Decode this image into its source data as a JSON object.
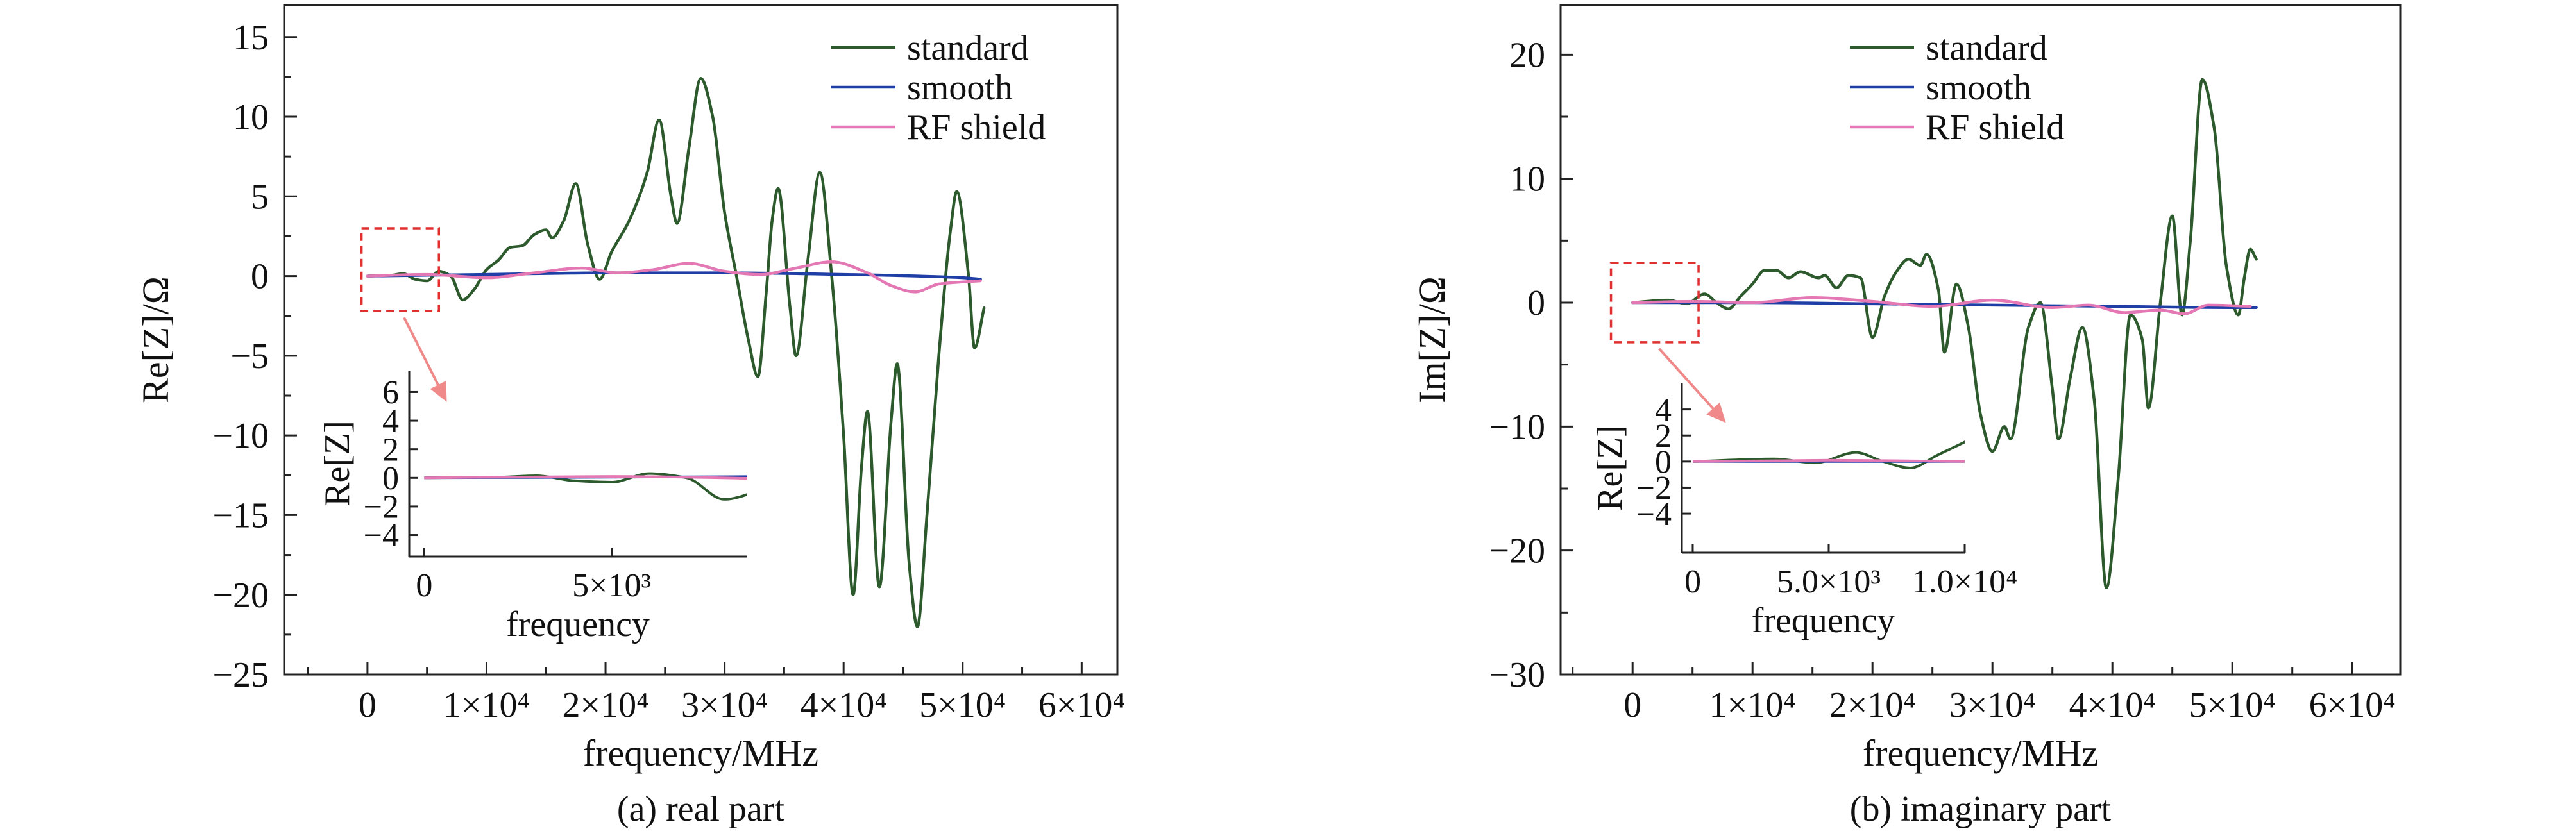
{
  "figures": [
    {
      "caption": "(a) real part",
      "chart_data": {
        "type": "line",
        "xlabel": "frequency/MHz",
        "ylabel": "Re[Z]/Ω",
        "xlim": [
          -7000,
          63000
        ],
        "ylim": [
          -25,
          17
        ],
        "xticks": [
          0,
          10000,
          20000,
          30000,
          40000,
          50000,
          60000
        ],
        "xtick_labels": [
          "0",
          "1×10⁴",
          "2×10⁴",
          "3×10⁴",
          "4×10⁴",
          "5×10⁴",
          "6×10⁴"
        ],
        "yticks": [
          -25,
          -20,
          -15,
          -10,
          -5,
          0,
          5,
          10,
          15
        ],
        "ytick_labels": [
          "−25",
          "−20",
          "−15",
          "−10",
          "−5",
          "0",
          "5",
          "10",
          "15"
        ],
        "grid": false,
        "legend_position": "top-right",
        "series": [
          {
            "name": "standard",
            "color": "#2d5a2d",
            "points": [
              [
                0,
                0
              ],
              [
                2000,
                0.05
              ],
              [
                3000,
                0.15
              ],
              [
                4000,
                -0.2
              ],
              [
                5000,
                -0.3
              ],
              [
                6000,
                0.3
              ],
              [
                7000,
                0
              ],
              [
                8000,
                -1.5
              ],
              [
                9000,
                -0.8
              ],
              [
                10000,
                0.4
              ],
              [
                11000,
                1
              ],
              [
                12000,
                1.8
              ],
              [
                13000,
                1.9
              ],
              [
                14000,
                2.6
              ],
              [
                15000,
                2.9
              ],
              [
                15500,
                2.4
              ],
              [
                16500,
                3.5
              ],
              [
                17500,
                5.8
              ],
              [
                18500,
                2
              ],
              [
                19500,
                -0.2
              ],
              [
                20500,
                1.5
              ],
              [
                22000,
                3.5
              ],
              [
                23500,
                6.5
              ],
              [
                24500,
                9.8
              ],
              [
                25500,
                5
              ],
              [
                26000,
                3.3
              ],
              [
                27000,
                8
              ],
              [
                28000,
                12.4
              ],
              [
                29000,
                10
              ],
              [
                30000,
                4
              ],
              [
                31000,
                0
              ],
              [
                32000,
                -4
              ],
              [
                32800,
                -6.3
              ],
              [
                33500,
                -1
              ],
              [
                34000,
                3.5
              ],
              [
                34500,
                5.5
              ],
              [
                35500,
                -2
              ],
              [
                36000,
                -5
              ],
              [
                37000,
                1
              ],
              [
                38000,
                6.5
              ],
              [
                39000,
                0
              ],
              [
                40000,
                -10
              ],
              [
                40800,
                -20
              ],
              [
                41500,
                -12
              ],
              [
                42000,
                -8.5
              ],
              [
                43000,
                -19.5
              ],
              [
                44000,
                -9
              ],
              [
                44500,
                -5.5
              ],
              [
                45500,
                -18
              ],
              [
                46200,
                -22
              ],
              [
                47000,
                -15
              ],
              [
                48000,
                -5
              ],
              [
                49000,
                3
              ],
              [
                49500,
                5.3
              ],
              [
                50500,
                0
              ],
              [
                51000,
                -4.5
              ],
              [
                51800,
                -2
              ]
            ]
          },
          {
            "name": "smooth",
            "color": "#1f3fa6",
            "points": [
              [
                0,
                0
              ],
              [
                10000,
                0.1
              ],
              [
                20000,
                0.2
              ],
              [
                30000,
                0.2
              ],
              [
                40000,
                0.1
              ],
              [
                50000,
                -0.1
              ],
              [
                51500,
                -0.2
              ]
            ]
          },
          {
            "name": "RF shield",
            "color": "#e478b4",
            "points": [
              [
                0,
                0
              ],
              [
                5000,
                0.1
              ],
              [
                10000,
                -0.1
              ],
              [
                14000,
                0.2
              ],
              [
                18000,
                0.5
              ],
              [
                21000,
                0.2
              ],
              [
                24000,
                0.4
              ],
              [
                27000,
                0.8
              ],
              [
                30000,
                0.3
              ],
              [
                33000,
                0.1
              ],
              [
                36000,
                0.5
              ],
              [
                39000,
                0.9
              ],
              [
                42000,
                0.2
              ],
              [
                44000,
                -0.6
              ],
              [
                46000,
                -1
              ],
              [
                48000,
                -0.5
              ],
              [
                51500,
                -0.3
              ]
            ]
          }
        ],
        "inset": {
          "ylabel": "Re[Z]",
          "xlabel": "frequency",
          "xlim": [
            -400,
            8600
          ],
          "ylim": [
            -5.5,
            7.5
          ],
          "xticks": [
            0,
            5000
          ],
          "xtick_labels": [
            "0",
            "5×10³"
          ],
          "yticks": [
            -4,
            -2,
            0,
            2,
            4,
            6
          ],
          "ytick_labels": [
            "−4",
            "−2",
            "0",
            "2",
            "4",
            "6"
          ],
          "zoom_range": {
            "x": [
              -500,
              6000
            ],
            "y": [
              -2.2,
              3
            ]
          }
        }
      }
    },
    {
      "caption": "(b) imaginary part",
      "chart_data": {
        "type": "line",
        "xlabel": "frequency/MHz",
        "ylabel": "Im[Z]/Ω",
        "xlim": [
          -6000,
          64000
        ],
        "ylim": [
          -30,
          24
        ],
        "xticks": [
          0,
          10000,
          20000,
          30000,
          40000,
          50000,
          60000
        ],
        "xtick_labels": [
          "0",
          "1×10⁴",
          "2×10⁴",
          "3×10⁴",
          "4×10⁴",
          "5×10⁴",
          "6×10⁴"
        ],
        "yticks": [
          -30,
          -20,
          -10,
          0,
          10,
          20
        ],
        "ytick_labels": [
          "−30",
          "−20",
          "−10",
          "0",
          "10",
          "20"
        ],
        "grid": false,
        "legend_position": "top-center",
        "series": [
          {
            "name": "standard",
            "color": "#2d5a2d",
            "points": [
              [
                0,
                0
              ],
              [
                3000,
                0.2
              ],
              [
                4500,
                -0.1
              ],
              [
                6000,
                0.7
              ],
              [
                7000,
                0
              ],
              [
                8000,
                -0.5
              ],
              [
                9000,
                0.5
              ],
              [
                10000,
                1.5
              ],
              [
                11000,
                2.6
              ],
              [
                12000,
                2.6
              ],
              [
                13000,
                2
              ],
              [
                14000,
                2.5
              ],
              [
                15500,
                2
              ],
              [
                16000,
                2.2
              ],
              [
                17000,
                1.2
              ],
              [
                18000,
                2.2
              ],
              [
                19000,
                2
              ],
              [
                20000,
                -2.8
              ],
              [
                21000,
                0.5
              ],
              [
                22000,
                2.5
              ],
              [
                23000,
                3.5
              ],
              [
                24000,
                3
              ],
              [
                24500,
                3.9
              ],
              [
                25500,
                1
              ],
              [
                26000,
                -4
              ],
              [
                27000,
                1.5
              ],
              [
                28000,
                -2
              ],
              [
                29000,
                -9
              ],
              [
                30000,
                -12
              ],
              [
                31000,
                -10
              ],
              [
                31500,
                -11
              ],
              [
                33000,
                -2
              ],
              [
                34000,
                0
              ],
              [
                35000,
                -7
              ],
              [
                35500,
                -11
              ],
              [
                36500,
                -6
              ],
              [
                37500,
                -2
              ],
              [
                38500,
                -8
              ],
              [
                39500,
                -23
              ],
              [
                40500,
                -14
              ],
              [
                41500,
                -1
              ],
              [
                42500,
                -3
              ],
              [
                43000,
                -8.5
              ],
              [
                44000,
                0
              ],
              [
                45000,
                7
              ],
              [
                45800,
                -1
              ],
              [
                46500,
                5
              ],
              [
                47500,
                18
              ],
              [
                48500,
                14
              ],
              [
                49500,
                3
              ],
              [
                50500,
                -1
              ],
              [
                51000,
                2
              ],
              [
                51500,
                4.3
              ],
              [
                52000,
                3.5
              ]
            ]
          },
          {
            "name": "smooth",
            "color": "#1f3fa6",
            "points": [
              [
                0,
                0
              ],
              [
                10000,
                0
              ],
              [
                20000,
                -0.1
              ],
              [
                30000,
                -0.2
              ],
              [
                40000,
                -0.3
              ],
              [
                50000,
                -0.4
              ],
              [
                52000,
                -0.4
              ]
            ]
          },
          {
            "name": "RF shield",
            "color": "#e478b4",
            "points": [
              [
                0,
                0
              ],
              [
                5000,
                0.1
              ],
              [
                10000,
                0
              ],
              [
                15000,
                0.4
              ],
              [
                20000,
                0.1
              ],
              [
                25000,
                -0.3
              ],
              [
                30000,
                0.2
              ],
              [
                35000,
                -0.4
              ],
              [
                38000,
                -0.2
              ],
              [
                41000,
                -0.8
              ],
              [
                44000,
                -0.6
              ],
              [
                46000,
                -0.9
              ],
              [
                48000,
                -0.2
              ],
              [
                51500,
                -0.3
              ]
            ]
          }
        ],
        "inset": {
          "ylabel": "Re[Z]",
          "xlabel": "frequency",
          "xlim": [
            -400,
            10000
          ],
          "ylim": [
            -7,
            6
          ],
          "xticks": [
            0,
            5000,
            10000
          ],
          "xtick_labels": [
            "0",
            "5.0×10³",
            "1.0×10⁴"
          ],
          "yticks": [
            -4,
            -2,
            0,
            2,
            4
          ],
          "ytick_labels": [
            "−4",
            "−2",
            "0",
            "2",
            "4"
          ],
          "zoom_range": {
            "x": [
              -1800,
              5500
            ],
            "y": [
              -3.2,
              3.2
            ]
          }
        }
      }
    }
  ]
}
